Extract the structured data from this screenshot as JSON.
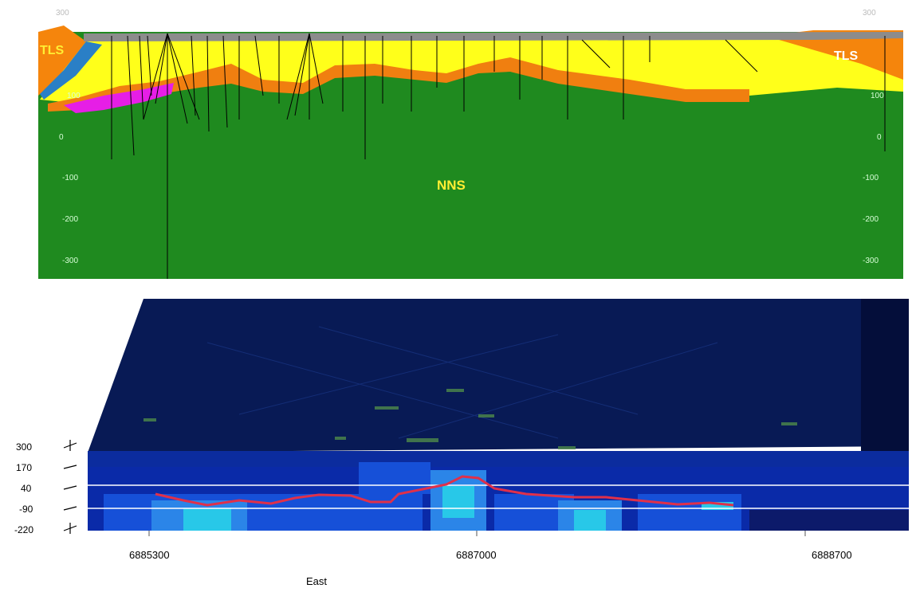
{
  "cross_section": {
    "depth_ticks": [
      "300",
      "100",
      "0",
      "-100",
      "-200",
      "-300"
    ],
    "labels": {
      "left_unit": "TLS",
      "right_unit": "TLS",
      "basement_unit": "NNS"
    },
    "colors": {
      "basement": "#1f8a1f",
      "upper_unit": "#ffff1a",
      "contact_band": "#f07f10",
      "side_unit": "#f5850c",
      "blue_wedge": "#2a7fc6",
      "magenta_lens": "#e61ee6",
      "surface_cover": "#8c8c8c",
      "label_yellow": "#ffee33",
      "label_white": "#ffffff"
    }
  },
  "inversion_section": {
    "depth_ticks": [
      "300",
      "170",
      "40",
      "-90",
      "-220"
    ],
    "east_ticks": [
      "6885300",
      "6887000",
      "6888700"
    ],
    "x_axis_label": "East",
    "colors": {
      "profile_line": "#e0304a",
      "background": "#061a5c",
      "anomaly": "#28c8e8"
    }
  }
}
